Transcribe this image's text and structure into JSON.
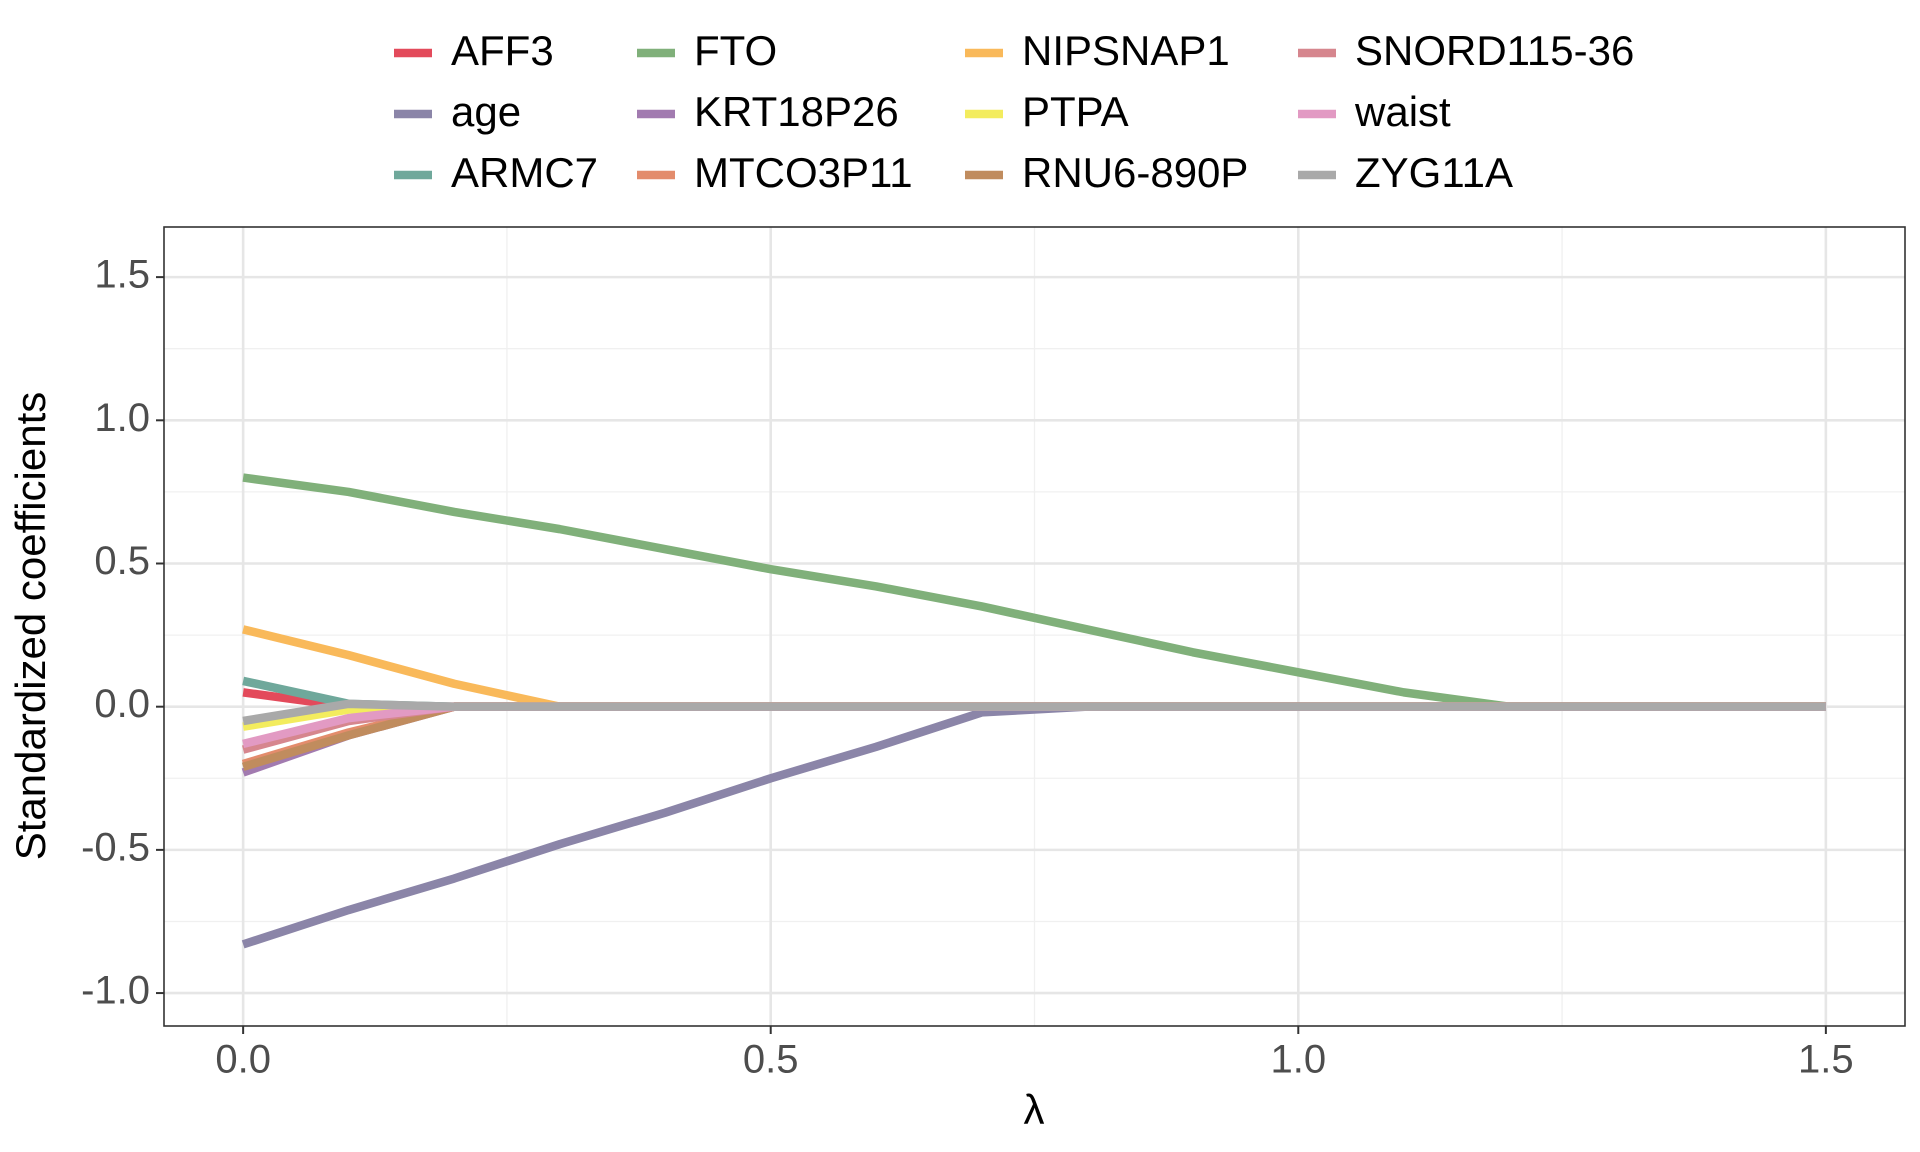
{
  "chart_data": {
    "type": "line",
    "x_label": "λ",
    "y_label": "Standardized coefficients",
    "x": [
      0,
      0.1,
      0.2,
      0.3,
      0.4,
      0.5,
      0.6,
      0.7,
      0.8,
      0.9,
      1.0,
      1.1,
      1.2,
      1.3,
      1.4,
      1.5
    ],
    "xlim": [
      -0.075,
      1.575
    ],
    "ylim": [
      -1.115,
      1.675
    ],
    "xticks": [
      {
        "value": 0,
        "label": "0.0"
      },
      0.5,
      {
        "value": 1,
        "label": "1.0"
      },
      1.5
    ],
    "yticks": [
      {
        "value": -1,
        "label": "-1.0"
      },
      -0.5,
      {
        "value": 0,
        "label": "0.0"
      },
      0.5,
      {
        "value": 1,
        "label": "1.0"
      },
      1.5
    ],
    "grid": true,
    "legend_position": "top",
    "series": [
      {
        "name": "AFF3",
        "color": "#e34a5b",
        "values": [
          0.05,
          0,
          0,
          0,
          0,
          0,
          0,
          0,
          0,
          0,
          0,
          0,
          0,
          0,
          0,
          0
        ]
      },
      {
        "name": "age",
        "color": "#8b85a8",
        "values": [
          -0.83,
          -0.71,
          -0.6,
          -0.48,
          -0.37,
          -0.25,
          -0.14,
          -0.02,
          0,
          0,
          0,
          0,
          0,
          0,
          0,
          0
        ]
      },
      {
        "name": "ARMC7",
        "color": "#6fa89b",
        "values": [
          0.09,
          0.01,
          0,
          0,
          0,
          0,
          0,
          0,
          0,
          0,
          0,
          0,
          0,
          0,
          0,
          0
        ]
      },
      {
        "name": "FTO",
        "color": "#80b07a",
        "values": [
          0.8,
          0.75,
          0.68,
          0.62,
          0.55,
          0.48,
          0.42,
          0.35,
          0.27,
          0.19,
          0.12,
          0.05,
          0,
          0,
          0,
          0
        ]
      },
      {
        "name": "KRT18P26",
        "color": "#a27bb0",
        "values": [
          -0.23,
          -0.1,
          0,
          0,
          0,
          0,
          0,
          0,
          0,
          0,
          0,
          0,
          0,
          0,
          0,
          0
        ]
      },
      {
        "name": "MTCO3P11",
        "color": "#e38c6c",
        "values": [
          -0.2,
          -0.09,
          0,
          0,
          0,
          0,
          0,
          0,
          0,
          0,
          0,
          0,
          0,
          0,
          0,
          0
        ]
      },
      {
        "name": "NIPSNAP1",
        "color": "#f9b95a",
        "values": [
          0.27,
          0.18,
          0.08,
          0,
          0,
          0,
          0,
          0,
          0,
          0,
          0,
          0,
          0,
          0,
          0,
          0
        ]
      },
      {
        "name": "PTPA",
        "color": "#f3ec5e",
        "values": [
          -0.07,
          -0.01,
          0,
          0,
          0,
          0,
          0,
          0,
          0,
          0,
          0,
          0,
          0,
          0,
          0,
          0
        ]
      },
      {
        "name": "RNU6-890P",
        "color": "#c08c5e",
        "values": [
          -0.21,
          -0.1,
          0,
          0,
          0,
          0,
          0,
          0,
          0,
          0,
          0,
          0,
          0,
          0,
          0,
          0
        ]
      },
      {
        "name": "SNORD115-36",
        "color": "#d6868e",
        "values": [
          -0.15,
          -0.05,
          0,
          0,
          0,
          0,
          0,
          0,
          0,
          0,
          0,
          0,
          0,
          0,
          0,
          0
        ]
      },
      {
        "name": "waist",
        "color": "#e29ac3",
        "values": [
          -0.13,
          -0.04,
          0,
          0,
          0,
          0,
          0,
          0,
          0,
          0,
          0,
          0,
          0,
          0,
          0,
          0
        ]
      },
      {
        "name": "ZYG11A",
        "color": "#a9a9a9",
        "values": [
          -0.05,
          0.01,
          0,
          0,
          0,
          0,
          0,
          0,
          0,
          0,
          0,
          0,
          0,
          0,
          0,
          0
        ]
      }
    ]
  }
}
